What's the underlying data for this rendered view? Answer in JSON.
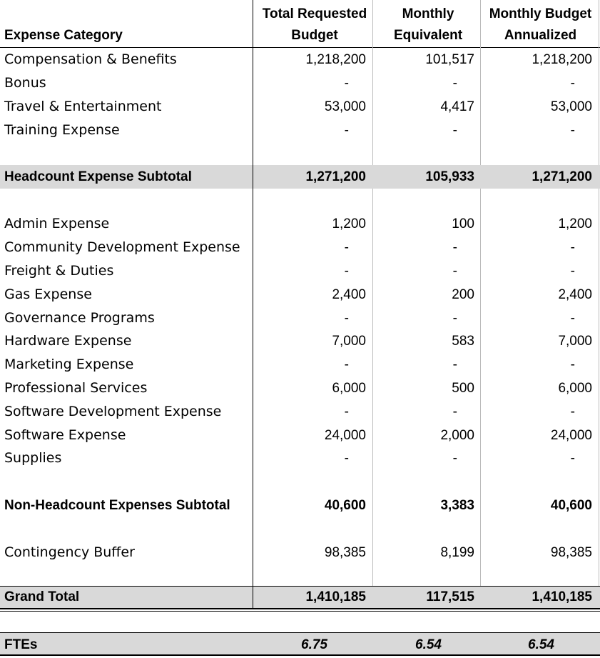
{
  "header": {
    "category": "Expense Category",
    "col1_line1": "Total Requested",
    "col1_line2": "Budget",
    "col2_line1": "Monthly",
    "col2_line2": "Equivalent",
    "col3_line1": "Monthly Budget",
    "col3_line2": "Annualized"
  },
  "rows": [
    {
      "label": "Compensation & Benefits",
      "total": "1,218,200",
      "monthly": "101,517",
      "annualized": "1,218,200"
    },
    {
      "label": "Bonus",
      "total": "-",
      "monthly": "-",
      "annualized": "-"
    },
    {
      "label": "Travel & Entertainment",
      "total": "53,000",
      "monthly": "4,417",
      "annualized": "53,000"
    },
    {
      "label": "Training Expense",
      "total": "-",
      "monthly": "-",
      "annualized": "-"
    },
    {
      "label": "Headcount Expense Subtotal",
      "total": "1,271,200",
      "monthly": "105,933",
      "annualized": "1,271,200"
    },
    {
      "label": "Admin Expense",
      "total": "1,200",
      "monthly": "100",
      "annualized": "1,200"
    },
    {
      "label": "Community Development Expense",
      "total": "-",
      "monthly": "-",
      "annualized": "-"
    },
    {
      "label": "Freight & Duties",
      "total": "-",
      "monthly": "-",
      "annualized": "-"
    },
    {
      "label": "Gas Expense",
      "total": "2,400",
      "monthly": "200",
      "annualized": "2,400"
    },
    {
      "label": "Governance Programs",
      "total": "-",
      "monthly": "-",
      "annualized": "-"
    },
    {
      "label": "Hardware Expense",
      "total": "7,000",
      "monthly": "583",
      "annualized": "7,000"
    },
    {
      "label": "Marketing Expense",
      "total": "-",
      "monthly": "-",
      "annualized": "-"
    },
    {
      "label": "Professional Services",
      "total": "6,000",
      "monthly": "500",
      "annualized": "6,000"
    },
    {
      "label": "Software Development Expense",
      "total": "-",
      "monthly": "-",
      "annualized": "-"
    },
    {
      "label": "Software Expense",
      "total": "24,000",
      "monthly": "2,000",
      "annualized": "24,000"
    },
    {
      "label": "Supplies",
      "total": "-",
      "monthly": "-",
      "annualized": "-"
    },
    {
      "label": "Non-Headcount Expenses Subtotal",
      "total": "40,600",
      "monthly": "3,383",
      "annualized": "40,600"
    },
    {
      "label": "Contingency Buffer",
      "total": "98,385",
      "monthly": "8,199",
      "annualized": "98,385"
    },
    {
      "label": "Grand Total",
      "total": "1,410,185",
      "monthly": "117,515",
      "annualized": "1,410,185"
    }
  ],
  "ftes": {
    "label": "FTEs",
    "total": "6.75",
    "monthly": "6.54",
    "annualized": "6.54"
  }
}
